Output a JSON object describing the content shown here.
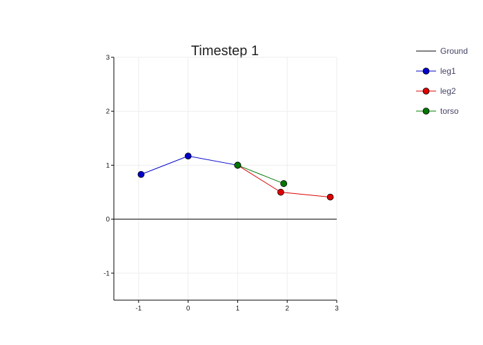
{
  "chart_data": {
    "type": "line",
    "title": "Timestep 1",
    "xlabel": "",
    "ylabel": "",
    "xlim": [
      -1.5,
      3
    ],
    "ylim": [
      -1.5,
      3
    ],
    "xticks": [
      -1,
      0,
      1,
      2,
      3
    ],
    "yticks": [
      -1,
      0,
      1,
      2,
      3
    ],
    "xtick_labels": [
      "-1",
      "0",
      "1",
      "2",
      "3"
    ],
    "ytick_labels": [
      "-1",
      "0",
      "1",
      "2",
      "3"
    ],
    "grid": true,
    "legend_position": "top-right",
    "series": [
      {
        "name": "Ground",
        "color": "#000000",
        "markers": false,
        "x": [
          -1.5,
          3
        ],
        "y": [
          0,
          0
        ]
      },
      {
        "name": "leg1",
        "color": "#0000cc",
        "markers": true,
        "x": [
          -0.95,
          0.0,
          1.0
        ],
        "y": [
          0.83,
          1.17,
          1.0
        ]
      },
      {
        "name": "leg2",
        "color": "#dd0000",
        "markers": true,
        "x": [
          1.0,
          1.87,
          2.87
        ],
        "y": [
          1.0,
          0.5,
          0.41
        ]
      },
      {
        "name": "torso",
        "color": "#007700",
        "markers": true,
        "x": [
          1.0,
          1.93
        ],
        "y": [
          1.0,
          0.66
        ]
      }
    ]
  }
}
